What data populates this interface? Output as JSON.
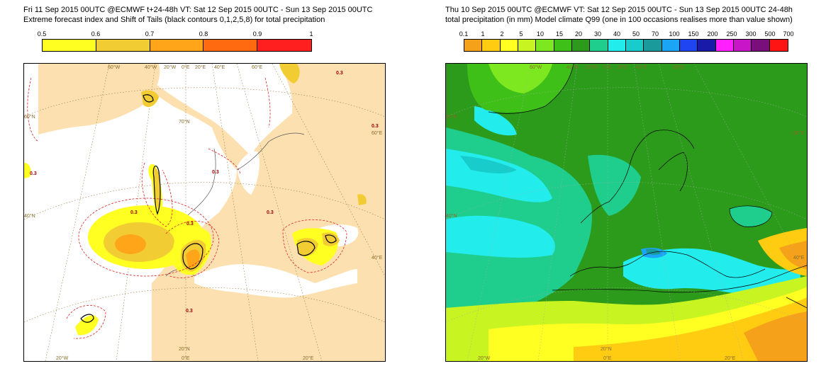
{
  "left": {
    "title_line1": "Fri 11 Sep 2015 00UTC @ECMWF t+24-48h  VT: Sat 12 Sep 2015 00UTC - Sun 13 Sep 2015 00UTC",
    "title_line2": "Extreme forecast index and Shift of Tails (black contours 0,1,2,5,8) for total precipitation",
    "legend_ticks": [
      "0.5",
      "0.6",
      "0.7",
      "0.8",
      "0.9",
      "1"
    ],
    "legend_colors": [
      "#ffff22",
      "#f2cc33",
      "#ffa51a",
      "#ff6a10",
      "#ff1f1f"
    ],
    "contour_label": "0.3",
    "grid_labels": {
      "top": [
        "60°W",
        "40°W",
        "20°W",
        "0°E",
        "20°E",
        "40°E",
        "60°E"
      ],
      "left": [
        "60°N",
        "40°N"
      ],
      "right": [
        "60°E",
        "40°E"
      ],
      "bottom": [
        "20°W",
        "0°E",
        "20°E"
      ],
      "inner": [
        "70°N",
        "20°N"
      ]
    }
  },
  "right": {
    "title_line1": "Thu 10 Sep 2015 00UTC @ECMWF VT: Sat 12 Sep 2015 00UTC - Sun 13 Sep 2015 00UTC   24-48h",
    "title_line2": "total precipitation (in mm)  Model climate Q99 (one in 100 occasions realises more than value shown)",
    "legend_ticks": [
      "0.1",
      "1",
      "2",
      "5",
      "10",
      "15",
      "20",
      "30",
      "40",
      "50",
      "70",
      "100",
      "150",
      "200",
      "250",
      "300",
      "500",
      "700"
    ],
    "legend_colors": [
      "#f5a11a",
      "#ffcc11",
      "#ffff22",
      "#c8f522",
      "#7de81f",
      "#3fc018",
      "#2c9a1b",
      "#1fce8c",
      "#22ecec",
      "#19cccc",
      "#1a9a9a",
      "#1ba6f5",
      "#1f44f2",
      "#1a1aa8",
      "#ff1fff",
      "#c815c8",
      "#7a0e7a",
      "#ff1414"
    ],
    "grid_labels": {
      "top": [
        "60°W",
        "40°W",
        "20°W",
        "0°E",
        "20°E",
        "40°E",
        "60°E"
      ],
      "left": [
        "60°N",
        "40°N"
      ],
      "right": [
        "60°E",
        "40°E"
      ],
      "bottom": [
        "20°W",
        "0°E",
        "20°E"
      ],
      "inner": [
        "20°N"
      ]
    }
  }
}
